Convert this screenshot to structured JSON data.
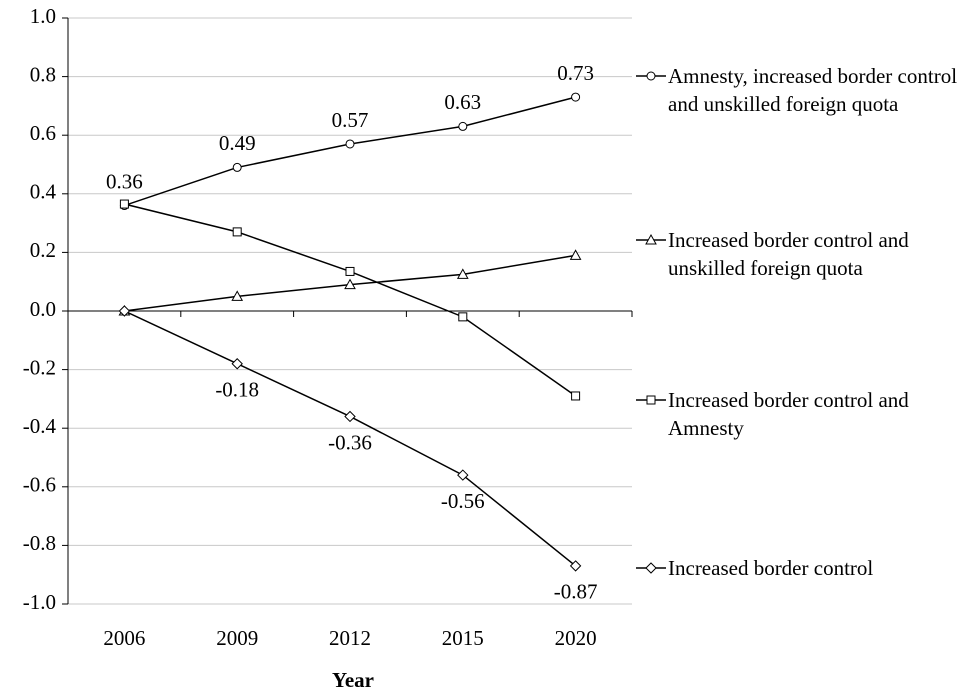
{
  "chart_data": {
    "type": "line",
    "x_label": "Year",
    "categories": [
      "2006",
      "2009",
      "2012",
      "2015",
      "2020"
    ],
    "ylim": [
      -1.0,
      1.0
    ],
    "yticks": [
      {
        "value": -1.0,
        "label": "-1.0"
      },
      {
        "value": -0.8,
        "label": "-0.8"
      },
      {
        "value": -0.6,
        "label": "-0.6"
      },
      {
        "value": -0.4,
        "label": "-0.4"
      },
      {
        "value": -0.2,
        "label": "-0.2"
      },
      {
        "value": 0,
        "label": "0.0"
      },
      {
        "value": 0.2,
        "label": "0.2"
      },
      {
        "value": 0.4,
        "label": "0.4"
      },
      {
        "value": 0.6,
        "label": "0.6"
      },
      {
        "value": 0.8,
        "label": "0.8"
      },
      {
        "value": 1.0,
        "label": "1.0"
      }
    ],
    "grid": true,
    "legend": "right",
    "series": [
      {
        "name": "Amnesty, increased border control and unskilled foreign quota",
        "color": "#000000",
        "marker": "circle",
        "values": [
          0.36,
          0.49,
          0.57,
          0.63,
          0.73
        ],
        "value_labels": [
          "0.36",
          "0.49",
          "0.57",
          "0.63",
          "0.73"
        ],
        "label_position": "above"
      },
      {
        "name": "Increased border control and unskilled foreign quota",
        "color": "#000000",
        "marker": "triangle",
        "values": [
          0,
          0.05,
          0.09,
          0.125,
          0.19
        ]
      },
      {
        "name": "Increased border control and Amnesty",
        "color": "#000000",
        "marker": "square",
        "values": [
          0.365,
          0.27,
          0.135,
          -0.02,
          -0.29
        ]
      },
      {
        "name": "Increased border control",
        "color": "#000000",
        "marker": "diamond",
        "values": [
          0,
          -0.18,
          -0.36,
          -0.56,
          -0.87
        ],
        "value_labels": [
          null,
          "-0.18",
          "-0.36",
          "-0.56",
          "-0.87"
        ],
        "label_position": "below"
      }
    ]
  }
}
